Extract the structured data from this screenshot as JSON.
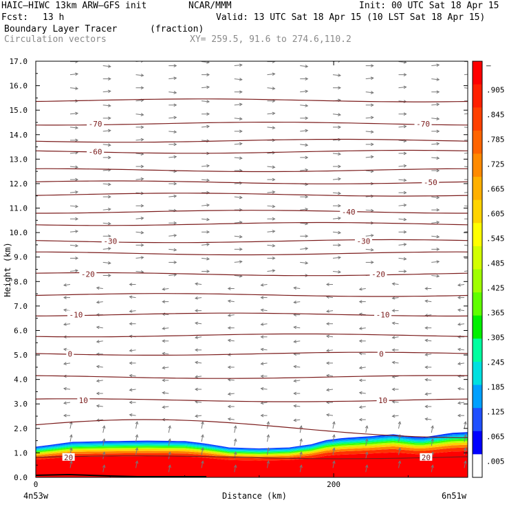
{
  "header": {
    "model": "HAIC–HIWC 13km ARW–GFS init",
    "org": "NCAR/MMM",
    "init": "Init: 00 UTC Sat 18 Apr 15",
    "fcst_label": "Fcst:",
    "fcst_value": "13 h",
    "valid": "Valid: 13 UTC Sat 18 Apr 15 (10 LST Sat 18 Apr 15)",
    "field_name": "Boundary Layer Tracer",
    "field_units": "(fraction)",
    "vectors": "Circulation vectors",
    "xy": "XY= 259.5, 91.6 to 274.6,110.2"
  },
  "chart_data": {
    "type": "heatmap",
    "xlabel": "Distance (km)",
    "ylabel": "Height (km)",
    "xlim": [
      0,
      290
    ],
    "ylim": [
      0.0,
      17.0
    ],
    "x_ticks": [
      {
        "v": 0,
        "label": "0"
      },
      {
        "v": 200,
        "label": "200"
      }
    ],
    "x_end_labels": {
      "left": "4n53w",
      "right": "6n51w"
    },
    "y_ticks": [
      "0.0",
      "1.0",
      "2.0",
      "3.0",
      "4.0",
      "5.0",
      "6.0",
      "7.0",
      "8.0",
      "9.0",
      "10.0",
      "11.0",
      "12.0",
      "13.0",
      "14.0",
      "15.0",
      "16.0",
      "17.0"
    ],
    "colorbar": {
      "labels": [
        "–",
        ".905",
        ".845",
        ".785",
        ".725",
        ".665",
        ".605",
        ".545",
        ".485",
        ".425",
        ".365",
        ".305",
        ".245",
        ".185",
        ".125",
        ".065",
        ".005"
      ],
      "colors": [
        "#ff0000",
        "#ff2000",
        "#ff4000",
        "#ff6400",
        "#ff8a00",
        "#ffb000",
        "#ffd400",
        "#ffff00",
        "#d2ff00",
        "#a0ff00",
        "#60ff00",
        "#00f000",
        "#00ffa0",
        "#00e0e0",
        "#00a0ff",
        "#2050ff",
        "#0000ff",
        "#ffffff"
      ]
    },
    "tracer_top_km": [
      [
        0,
        1.25
      ],
      [
        25,
        1.45
      ],
      [
        50,
        1.48
      ],
      [
        75,
        1.5
      ],
      [
        100,
        1.48
      ],
      [
        112,
        1.4
      ],
      [
        130,
        1.22
      ],
      [
        150,
        1.18
      ],
      [
        170,
        1.22
      ],
      [
        185,
        1.35
      ],
      [
        195,
        1.52
      ],
      [
        205,
        1.6
      ],
      [
        225,
        1.68
      ],
      [
        240,
        1.76
      ],
      [
        258,
        1.62
      ],
      [
        280,
        1.82
      ],
      [
        290,
        1.85
      ]
    ],
    "isotherms_C": [
      {
        "label": "-70",
        "y": 14.45,
        "label_at": [
          40,
          260
        ]
      },
      {
        "label": "-60",
        "y": 13.3,
        "label_at": [
          40
        ]
      },
      {
        "label": "-50",
        "y": 12.05,
        "label_at": [
          265
        ]
      },
      {
        "label": "-40",
        "y": 10.85,
        "label_at": [
          210
        ]
      },
      {
        "label": "-30",
        "y": 9.65,
        "label_at": [
          50,
          220
        ]
      },
      {
        "label": "-20",
        "y": 8.3,
        "label_at": [
          35,
          230
        ]
      },
      {
        "label": "-10",
        "y": 6.65,
        "label_at": [
          27,
          233
        ]
      },
      {
        "label": "0",
        "y": 5.05,
        "label_at": [
          23,
          232
        ]
      },
      {
        "label": "10",
        "y": 3.15,
        "label_at": [
          32,
          233
        ]
      },
      {
        "label": "20",
        "y": 0.82,
        "label_at": [
          22,
          262
        ]
      }
    ],
    "contour_lines_km": [
      1.95,
      3.15,
      4.1,
      5.05,
      5.8,
      6.65,
      7.45,
      8.3,
      9.15,
      9.65,
      10.35,
      10.85,
      11.55,
      12.05,
      12.55,
      13.3,
      13.75,
      14.45,
      15.4
    ],
    "grid": false
  }
}
